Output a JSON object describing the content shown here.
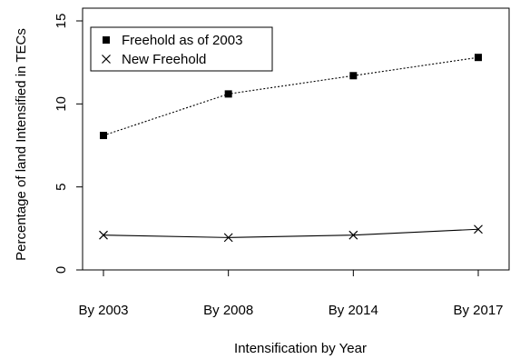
{
  "chart_data": {
    "type": "line",
    "xlabel": "Intensification by Year",
    "ylabel": "Percentage of land Intensified in TECs",
    "categories": [
      "By 2003",
      "By 2008",
      "By 2014",
      "By 2017"
    ],
    "ylim": [
      0,
      15
    ],
    "yticks": [
      "0",
      "5",
      "10",
      "15"
    ],
    "grid": false,
    "legend_position": "top-left",
    "series": [
      {
        "name": "Freehold as of 2003",
        "values": [
          8.1,
          10.6,
          11.7,
          12.8
        ],
        "marker": "filled-square",
        "line_style": "dotted",
        "color": "#000000"
      },
      {
        "name": "New Freehold",
        "values": [
          2.1,
          1.95,
          2.1,
          2.45
        ],
        "marker": "x",
        "line_style": "solid",
        "color": "#000000"
      }
    ]
  }
}
